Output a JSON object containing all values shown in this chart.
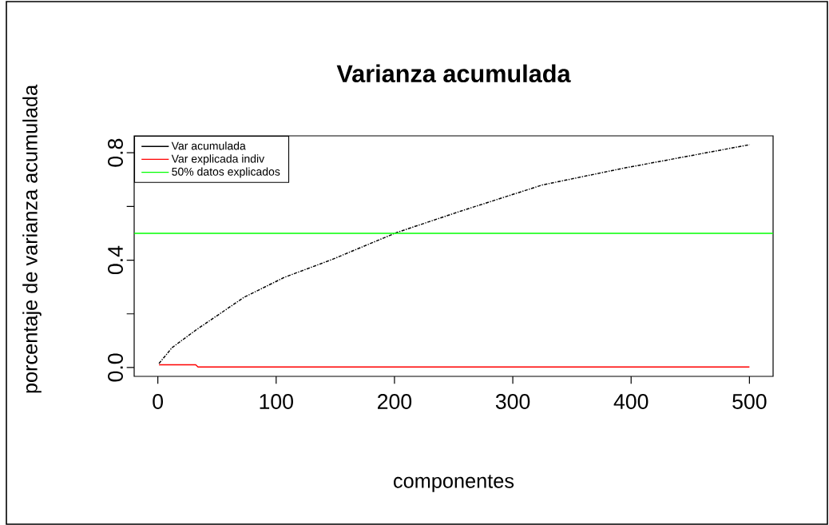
{
  "chart_data": {
    "type": "line",
    "title": "Varianza acumulada",
    "xlabel": "componentes",
    "ylabel": "porcentaje de varianza acumulada",
    "xlim": [
      -20,
      520
    ],
    "ylim": [
      -0.033,
      0.863
    ],
    "xticks": [
      0,
      100,
      200,
      300,
      400,
      500
    ],
    "yticks": [
      {
        "value": 0,
        "label": "0.0"
      },
      {
        "value": 0.2,
        "label": null
      },
      0.4,
      {
        "value": 0.6,
        "label": null
      },
      0.8
    ],
    "series": [
      {
        "name": "Var acumulada",
        "color": "#000000",
        "line_style": "dashed",
        "x": [
          1,
          12,
          32,
          73,
          107,
          147,
          202,
          257,
          325,
          393,
          438,
          500
        ],
        "values": [
          0.015,
          0.074,
          0.139,
          0.262,
          0.336,
          0.402,
          0.503,
          0.584,
          0.68,
          0.742,
          0.779,
          0.83
        ]
      },
      {
        "name": "Var explicada indiv",
        "color": "#ff0000",
        "x": [
          1,
          32,
          34,
          500
        ],
        "values": [
          0.01,
          0.01,
          0.002,
          0.002
        ]
      }
    ],
    "ref_lines": [
      {
        "axis": "y",
        "value": 0.5,
        "label": "50% datos explicados",
        "color": "#00ff00"
      }
    ],
    "legend": "top left",
    "marker": "none",
    "grid": false
  }
}
